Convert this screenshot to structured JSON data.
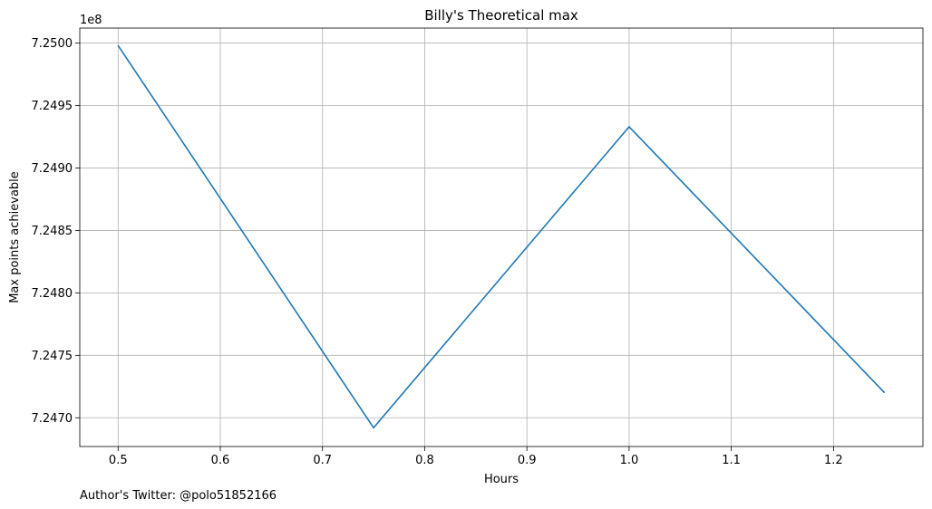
{
  "chart_data": {
    "type": "line",
    "title": "Billy's Theoretical max",
    "xlabel": "Hours",
    "ylabel": "Max points achievable",
    "y_offset_label": "1e8",
    "footnote": "Author's Twitter: @polo51852166",
    "x_ticks": [
      "0.5",
      "0.6",
      "0.7",
      "0.8",
      "0.9",
      "1.0",
      "1.1",
      "1.2"
    ],
    "y_ticks": [
      "7.2470",
      "7.2475",
      "7.2480",
      "7.2485",
      "7.2490",
      "7.2495",
      "7.2500"
    ],
    "xlim": [
      0.4625,
      1.2875
    ],
    "ylim": [
      724677000,
      725012000
    ],
    "grid": true,
    "series": [
      {
        "color": "#1f77b4",
        "x": [
          0.5,
          0.75,
          1.0,
          1.25
        ],
        "y": [
          724998000,
          724692000,
          724933000,
          724720000
        ]
      }
    ],
    "colors": {
      "line": "#1f77b4",
      "grid": "#b0b0b0",
      "axes": "#000000"
    }
  }
}
